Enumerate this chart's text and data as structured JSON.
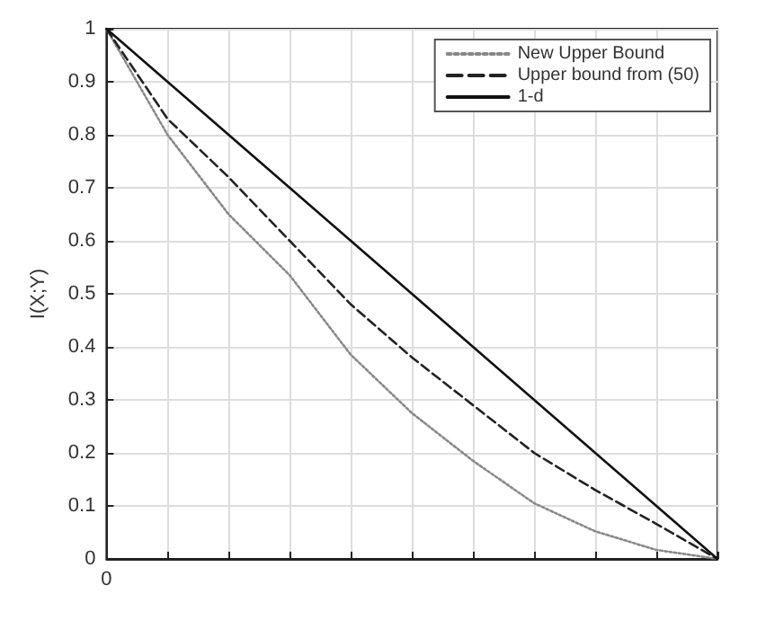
{
  "chart_data": {
    "type": "line",
    "ylabel": "I(X;Y)",
    "categories": [
      "0",
      null,
      null,
      null,
      null,
      null,
      null,
      null,
      null,
      null,
      null
    ],
    "series": [
      {
        "name": "New Upper Bound",
        "color": "#888888",
        "line_style": "dotted",
        "values": [
          1,
          0.8,
          0.65,
          0.535,
          0.385,
          0.275,
          0.185,
          0.105,
          0.052,
          0.017,
          0
        ]
      },
      {
        "name": "Upper bound from (50)",
        "color": "#222222",
        "line_style": "dashed",
        "values": [
          1,
          0.83,
          0.72,
          0.6,
          0.48,
          0.38,
          0.29,
          0.2,
          0.13,
          0.066,
          0
        ]
      },
      {
        "name": "1-d",
        "color": "#111111",
        "line_style": "solid",
        "values": [
          1,
          0.9,
          0.8,
          0.7,
          0.6,
          0.5,
          0.4,
          0.3,
          0.2,
          0.1,
          0
        ]
      }
    ],
    "ylim": [
      0,
      1
    ],
    "yticks": [
      0,
      0.1,
      0.2,
      0.3,
      0.4,
      0.5,
      0.6,
      0.7,
      0.8,
      0.9,
      1
    ],
    "grid": true,
    "legend": "top right",
    "marker": "none"
  }
}
